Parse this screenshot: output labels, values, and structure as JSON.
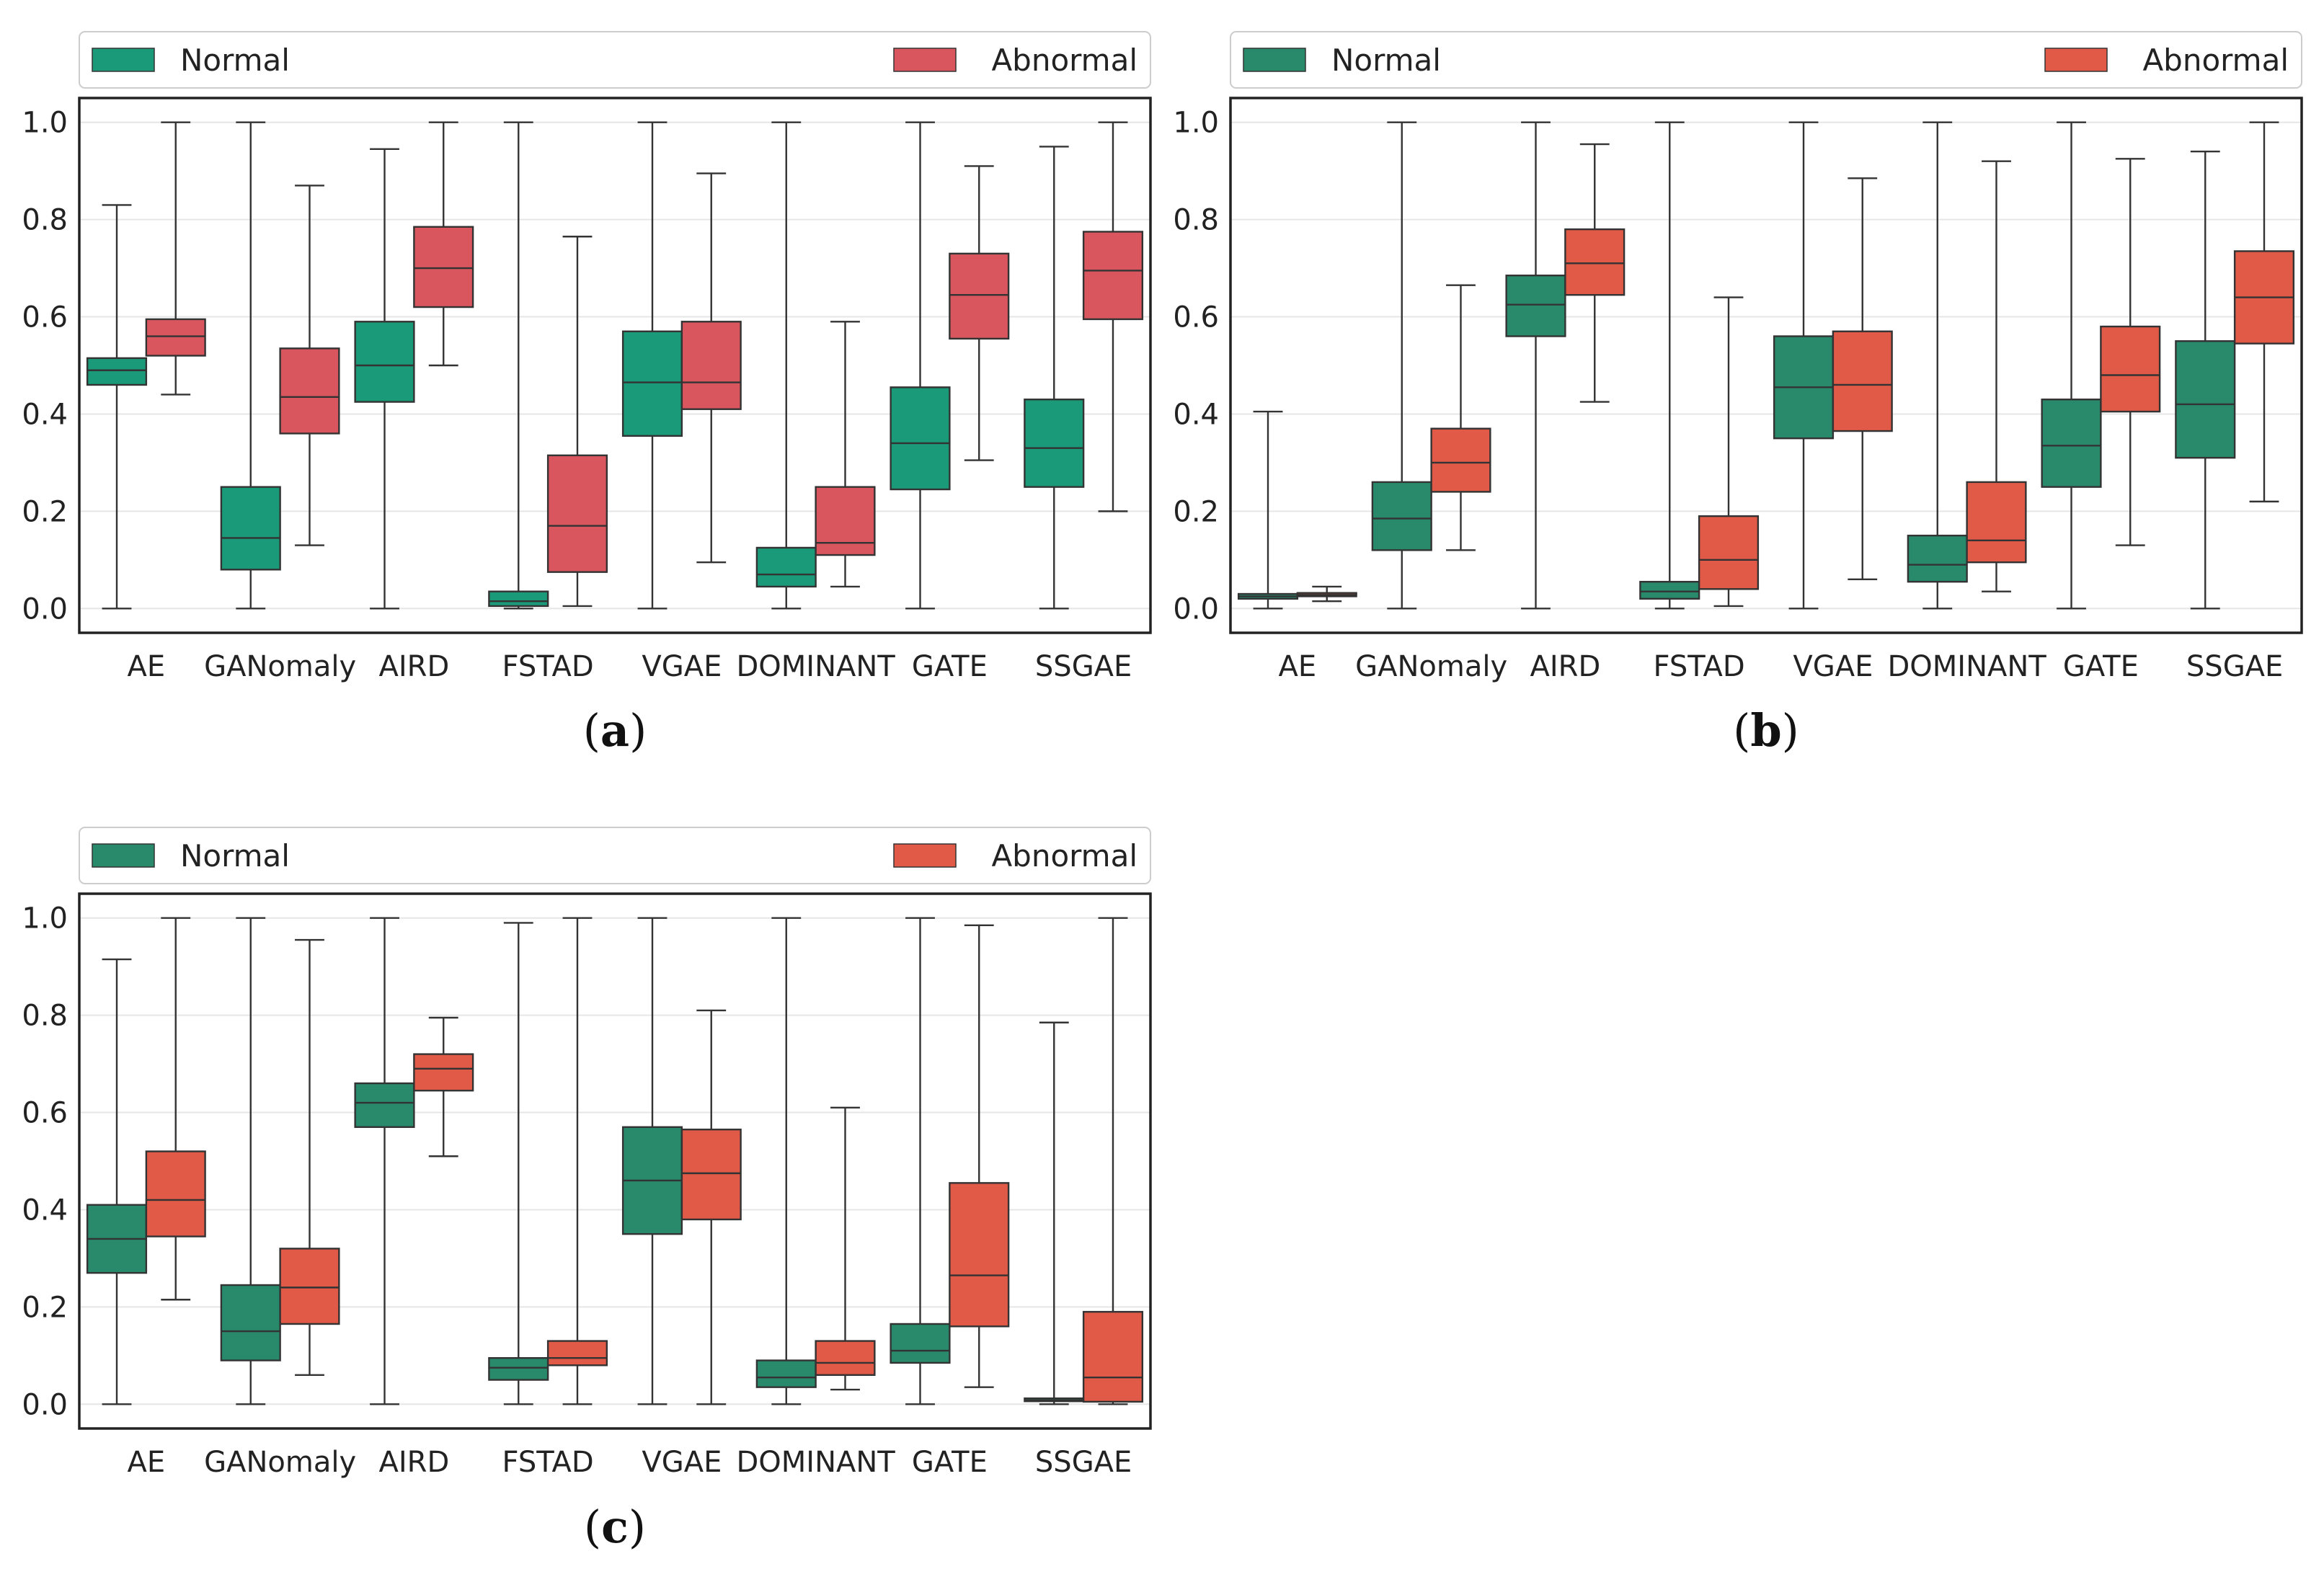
{
  "chart_data": [
    {
      "type": "boxplot",
      "panel_label": "a",
      "categories": [
        "AE",
        "GANomaly",
        "AIRD",
        "FSTAD",
        "VGAE",
        "DOMINANT",
        "GATE",
        "SSGAE"
      ],
      "ylim": [
        -0.05,
        1.05
      ],
      "yticks": [
        "0.0",
        "0.2",
        "0.4",
        "0.6",
        "0.8",
        "1.0"
      ],
      "grid": "horizontal",
      "legend_position": "top",
      "series": [
        {
          "name": "Normal",
          "color": "#1a9a78",
          "boxes": [
            {
              "whislo": 0.0,
              "q1": 0.46,
              "med": 0.49,
              "q3": 0.515,
              "whishi": 0.83
            },
            {
              "whislo": 0.0,
              "q1": 0.08,
              "med": 0.145,
              "q3": 0.25,
              "whishi": 1.0
            },
            {
              "whislo": 0.0,
              "q1": 0.425,
              "med": 0.5,
              "q3": 0.59,
              "whishi": 0.945
            },
            {
              "whislo": 0.0,
              "q1": 0.005,
              "med": 0.015,
              "q3": 0.035,
              "whishi": 1.0
            },
            {
              "whislo": 0.0,
              "q1": 0.355,
              "med": 0.465,
              "q3": 0.57,
              "whishi": 1.0
            },
            {
              "whislo": 0.0,
              "q1": 0.045,
              "med": 0.07,
              "q3": 0.125,
              "whishi": 1.0
            },
            {
              "whislo": 0.0,
              "q1": 0.245,
              "med": 0.34,
              "q3": 0.455,
              "whishi": 1.0
            },
            {
              "whislo": 0.0,
              "q1": 0.25,
              "med": 0.33,
              "q3": 0.43,
              "whishi": 0.95
            }
          ]
        },
        {
          "name": "Abnormal",
          "color": "#d9565f",
          "boxes": [
            {
              "whislo": 0.44,
              "q1": 0.52,
              "med": 0.56,
              "q3": 0.595,
              "whishi": 1.0
            },
            {
              "whislo": 0.13,
              "q1": 0.36,
              "med": 0.435,
              "q3": 0.535,
              "whishi": 0.87
            },
            {
              "whislo": 0.5,
              "q1": 0.62,
              "med": 0.7,
              "q3": 0.785,
              "whishi": 1.0
            },
            {
              "whislo": 0.005,
              "q1": 0.075,
              "med": 0.17,
              "q3": 0.315,
              "whishi": 0.765
            },
            {
              "whislo": 0.095,
              "q1": 0.41,
              "med": 0.465,
              "q3": 0.59,
              "whishi": 0.895
            },
            {
              "whislo": 0.045,
              "q1": 0.11,
              "med": 0.135,
              "q3": 0.25,
              "whishi": 0.59
            },
            {
              "whislo": 0.305,
              "q1": 0.555,
              "med": 0.645,
              "q3": 0.73,
              "whishi": 0.91
            },
            {
              "whislo": 0.2,
              "q1": 0.595,
              "med": 0.695,
              "q3": 0.775,
              "whishi": 1.0
            }
          ]
        }
      ]
    },
    {
      "type": "boxplot",
      "panel_label": "b",
      "categories": [
        "AE",
        "GANomaly",
        "AIRD",
        "FSTAD",
        "VGAE",
        "DOMINANT",
        "GATE",
        "SSGAE"
      ],
      "ylim": [
        -0.05,
        1.05
      ],
      "yticks": [
        "0.0",
        "0.2",
        "0.4",
        "0.6",
        "0.8",
        "1.0"
      ],
      "grid": "horizontal",
      "legend_position": "top",
      "series": [
        {
          "name": "Normal",
          "color": "#288a6b",
          "boxes": [
            {
              "whislo": 0.0,
              "q1": 0.02,
              "med": 0.025,
              "q3": 0.03,
              "whishi": 0.405
            },
            {
              "whislo": 0.0,
              "q1": 0.12,
              "med": 0.185,
              "q3": 0.26,
              "whishi": 1.0
            },
            {
              "whislo": 0.0,
              "q1": 0.56,
              "med": 0.625,
              "q3": 0.685,
              "whishi": 1.0
            },
            {
              "whislo": 0.0,
              "q1": 0.02,
              "med": 0.035,
              "q3": 0.055,
              "whishi": 1.0
            },
            {
              "whislo": 0.0,
              "q1": 0.35,
              "med": 0.455,
              "q3": 0.56,
              "whishi": 1.0
            },
            {
              "whislo": 0.0,
              "q1": 0.055,
              "med": 0.09,
              "q3": 0.15,
              "whishi": 1.0
            },
            {
              "whislo": 0.0,
              "q1": 0.25,
              "med": 0.335,
              "q3": 0.43,
              "whishi": 1.0
            },
            {
              "whislo": 0.0,
              "q1": 0.31,
              "med": 0.42,
              "q3": 0.55,
              "whishi": 0.94
            }
          ]
        },
        {
          "name": "Abnormal",
          "color": "#e05a47",
          "boxes": [
            {
              "whislo": 0.015,
              "q1": 0.025,
              "med": 0.028,
              "q3": 0.032,
              "whishi": 0.045
            },
            {
              "whislo": 0.12,
              "q1": 0.24,
              "med": 0.3,
              "q3": 0.37,
              "whishi": 0.665
            },
            {
              "whislo": 0.425,
              "q1": 0.645,
              "med": 0.71,
              "q3": 0.78,
              "whishi": 0.955
            },
            {
              "whislo": 0.005,
              "q1": 0.04,
              "med": 0.1,
              "q3": 0.19,
              "whishi": 0.64
            },
            {
              "whislo": 0.06,
              "q1": 0.365,
              "med": 0.46,
              "q3": 0.57,
              "whishi": 0.885
            },
            {
              "whislo": 0.035,
              "q1": 0.095,
              "med": 0.14,
              "q3": 0.26,
              "whishi": 0.92
            },
            {
              "whislo": 0.13,
              "q1": 0.405,
              "med": 0.48,
              "q3": 0.58,
              "whishi": 0.925
            },
            {
              "whislo": 0.22,
              "q1": 0.545,
              "med": 0.64,
              "q3": 0.735,
              "whishi": 1.0
            }
          ]
        }
      ]
    },
    {
      "type": "boxplot",
      "panel_label": "c",
      "categories": [
        "AE",
        "GANomaly",
        "AIRD",
        "FSTAD",
        "VGAE",
        "DOMINANT",
        "GATE",
        "SSGAE"
      ],
      "ylim": [
        -0.05,
        1.05
      ],
      "yticks": [
        "0.0",
        "0.2",
        "0.4",
        "0.6",
        "0.8",
        "1.0"
      ],
      "grid": "horizontal",
      "legend_position": "top",
      "series": [
        {
          "name": "Normal",
          "color": "#288a6b",
          "boxes": [
            {
              "whislo": 0.0,
              "q1": 0.27,
              "med": 0.34,
              "q3": 0.41,
              "whishi": 0.915
            },
            {
              "whislo": 0.0,
              "q1": 0.09,
              "med": 0.15,
              "q3": 0.245,
              "whishi": 1.0
            },
            {
              "whislo": 0.0,
              "q1": 0.57,
              "med": 0.62,
              "q3": 0.66,
              "whishi": 1.0
            },
            {
              "whislo": 0.0,
              "q1": 0.05,
              "med": 0.075,
              "q3": 0.095,
              "whishi": 0.99
            },
            {
              "whislo": 0.0,
              "q1": 0.35,
              "med": 0.46,
              "q3": 0.57,
              "whishi": 1.0
            },
            {
              "whislo": 0.0,
              "q1": 0.035,
              "med": 0.055,
              "q3": 0.09,
              "whishi": 1.0
            },
            {
              "whislo": 0.0,
              "q1": 0.085,
              "med": 0.11,
              "q3": 0.165,
              "whishi": 1.0
            },
            {
              "whislo": 0.0,
              "q1": 0.006,
              "med": 0.008,
              "q3": 0.012,
              "whishi": 0.785
            }
          ]
        },
        {
          "name": "Abnormal",
          "color": "#e05a47",
          "boxes": [
            {
              "whislo": 0.215,
              "q1": 0.345,
              "med": 0.42,
              "q3": 0.52,
              "whishi": 1.0
            },
            {
              "whislo": 0.06,
              "q1": 0.165,
              "med": 0.24,
              "q3": 0.32,
              "whishi": 0.955
            },
            {
              "whislo": 0.51,
              "q1": 0.645,
              "med": 0.69,
              "q3": 0.72,
              "whishi": 0.795
            },
            {
              "whislo": 0.0,
              "q1": 0.08,
              "med": 0.095,
              "q3": 0.13,
              "whishi": 1.0
            },
            {
              "whislo": 0.0,
              "q1": 0.38,
              "med": 0.475,
              "q3": 0.565,
              "whishi": 0.81
            },
            {
              "whislo": 0.03,
              "q1": 0.06,
              "med": 0.085,
              "q3": 0.13,
              "whishi": 0.61
            },
            {
              "whislo": 0.035,
              "q1": 0.16,
              "med": 0.265,
              "q3": 0.455,
              "whishi": 0.985
            },
            {
              "whislo": 0.0,
              "q1": 0.005,
              "med": 0.055,
              "q3": 0.19,
              "whishi": 1.0
            }
          ]
        }
      ]
    }
  ]
}
